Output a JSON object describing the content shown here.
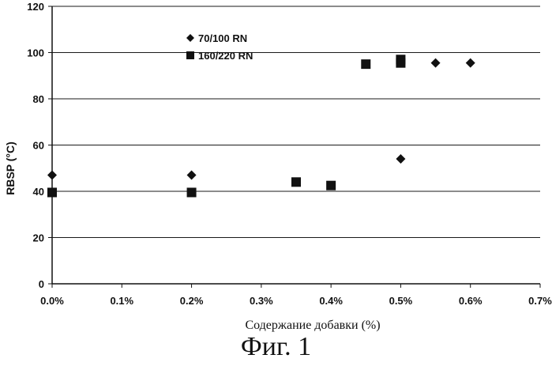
{
  "chart_data": {
    "type": "scatter",
    "xlabel": "Содержание добавки (%)",
    "ylabel": "RBSP (°C)",
    "xlim": [
      0,
      0.7
    ],
    "ylim": [
      0,
      120
    ],
    "x_ticks": [
      0,
      0.1,
      0.2,
      0.3,
      0.4,
      0.5,
      0.6,
      0.7
    ],
    "x_tick_labels": [
      "0.0%",
      "0.1%",
      "0.2%",
      "0.3%",
      "0.4%",
      "0.5%",
      "0.6%",
      "0.7%"
    ],
    "y_ticks": [
      0,
      20,
      40,
      60,
      80,
      100,
      120
    ],
    "y_tick_labels": [
      "0",
      "20",
      "40",
      "60",
      "80",
      "100",
      "120"
    ],
    "grid": "horizontal",
    "legend_position": "top-left",
    "series": [
      {
        "name": "70/100 RN",
        "marker": "diamond",
        "color": "#111111",
        "points": [
          {
            "x": 0.0,
            "y": 47
          },
          {
            "x": 0.2,
            "y": 47
          },
          {
            "x": 0.5,
            "y": 54
          },
          {
            "x": 0.55,
            "y": 95.5
          },
          {
            "x": 0.6,
            "y": 95.5
          }
        ]
      },
      {
        "name": "160/220 RN",
        "marker": "square",
        "color": "#111111",
        "points": [
          {
            "x": 0.0,
            "y": 39.5
          },
          {
            "x": 0.2,
            "y": 39.5
          },
          {
            "x": 0.35,
            "y": 44
          },
          {
            "x": 0.4,
            "y": 42.5
          },
          {
            "x": 0.45,
            "y": 95
          },
          {
            "x": 0.5,
            "y": 97
          },
          {
            "x": 0.5,
            "y": 95.5
          }
        ]
      }
    ]
  },
  "figure_caption": "Фиг. 1"
}
